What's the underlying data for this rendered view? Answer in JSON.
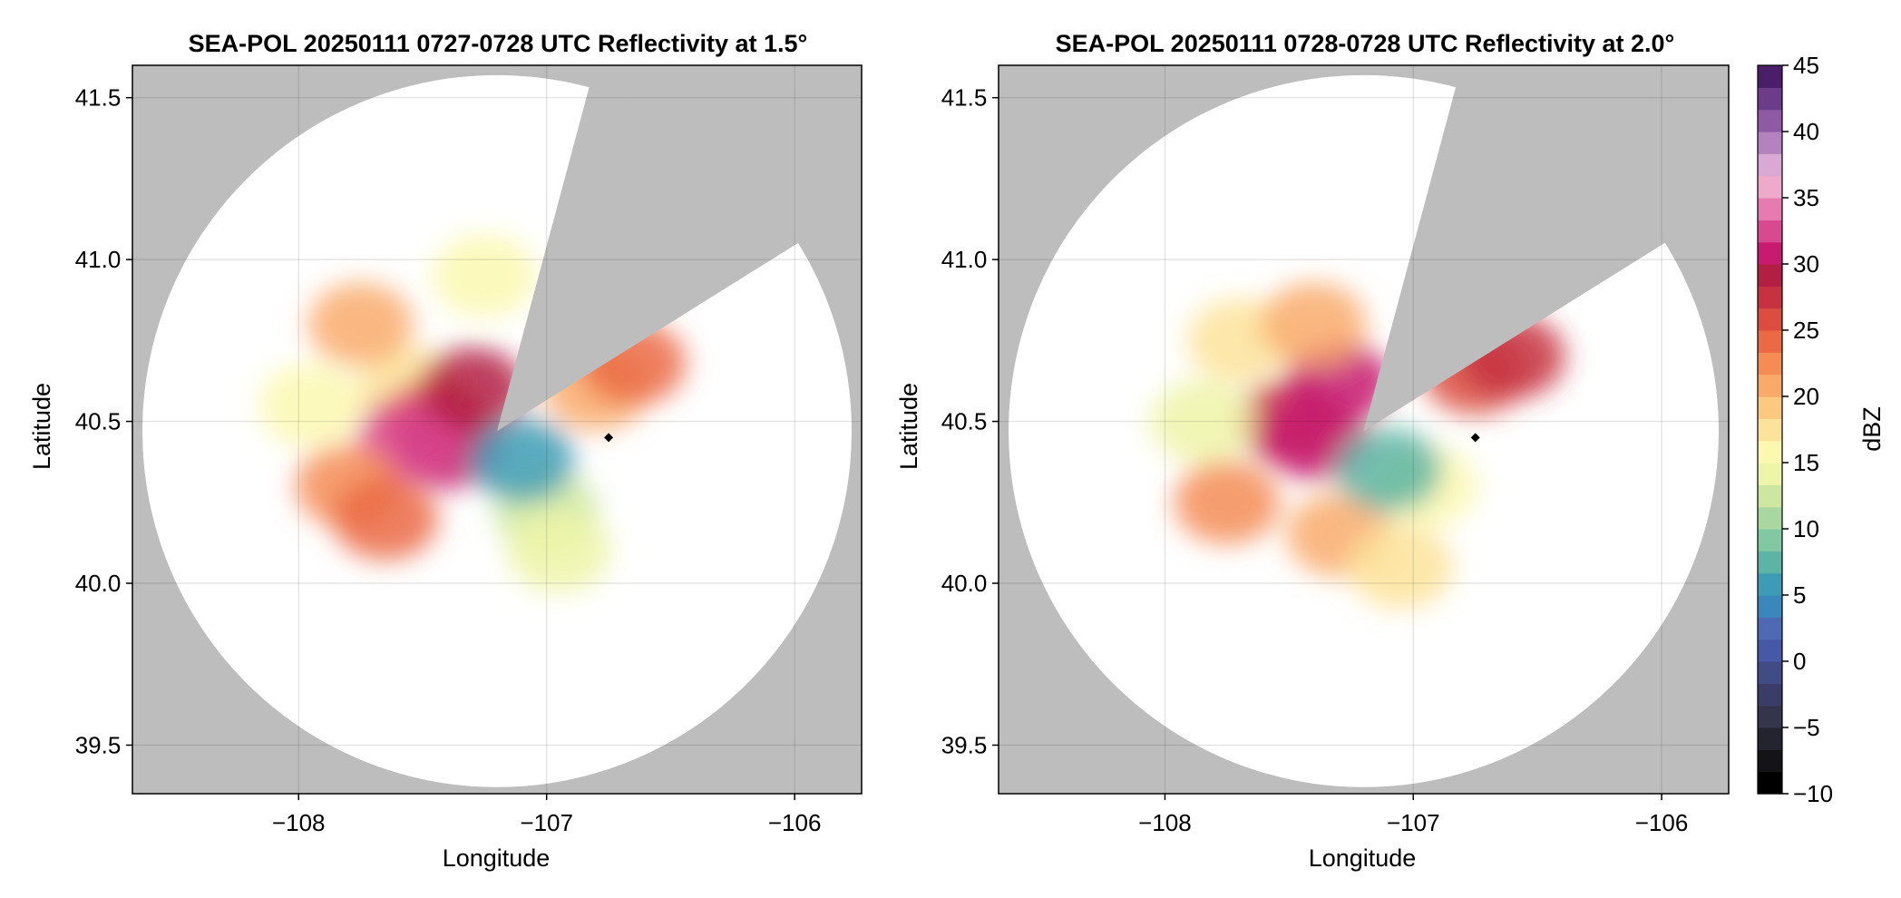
{
  "chart_data": [
    {
      "type": "heatmap",
      "title": "SEA-POL 20250111 0727-0728 UTC Reflectivity at 1.5°",
      "xlabel": "Longitude",
      "ylabel": "Latitude",
      "xlim": [
        -108.67,
        -105.73
      ],
      "ylim": [
        39.35,
        41.6
      ],
      "x_ticks": [
        -108,
        -107,
        -106
      ],
      "x_tick_labels": [
        "−108",
        "−107",
        "−106"
      ],
      "y_ticks": [
        39.5,
        40.0,
        40.5,
        41.0,
        41.5
      ],
      "y_tick_labels": [
        "39.5",
        "40.0",
        "40.5",
        "41.0",
        "41.5"
      ],
      "grid": true,
      "background_color": "#bdbdbd",
      "radar": {
        "lon": -107.2,
        "lat": 40.47,
        "range_deg_lat": 1.1,
        "range_deg_lon": 1.43
      },
      "blocked_sector_deg": [
        15,
        58
      ],
      "marker": {
        "lon": -106.75,
        "lat": 40.45
      },
      "echo_regions": [
        {
          "lon": -107.55,
          "lat": 40.6,
          "dbz": 18
        },
        {
          "lon": -107.75,
          "lat": 40.8,
          "dbz": 20
        },
        {
          "lon": -107.45,
          "lat": 40.5,
          "dbz": 26
        },
        {
          "lon": -107.4,
          "lat": 40.42,
          "dbz": 30
        },
        {
          "lon": -107.55,
          "lat": 40.45,
          "dbz": 32
        },
        {
          "lon": -107.3,
          "lat": 40.6,
          "dbz": 29
        },
        {
          "lon": -107.95,
          "lat": 40.55,
          "dbz": 16
        },
        {
          "lon": -107.8,
          "lat": 40.3,
          "dbz": 22
        },
        {
          "lon": -107.65,
          "lat": 40.2,
          "dbz": 24
        },
        {
          "lon": -107.0,
          "lat": 40.22,
          "dbz": 12
        },
        {
          "lon": -106.95,
          "lat": 40.1,
          "dbz": 14
        },
        {
          "lon": -106.8,
          "lat": 40.6,
          "dbz": 20
        },
        {
          "lon": -106.65,
          "lat": 40.68,
          "dbz": 24
        },
        {
          "lon": -107.25,
          "lat": 40.95,
          "dbz": 16
        },
        {
          "lon": -107.1,
          "lat": 40.38,
          "dbz": 6
        }
      ]
    },
    {
      "type": "heatmap",
      "title": "SEA-POL 20250111 0728-0728 UTC Reflectivity at 2.0°",
      "xlabel": "Longitude",
      "ylabel": "Latitude",
      "xlim": [
        -108.67,
        -105.73
      ],
      "ylim": [
        39.35,
        41.6
      ],
      "x_ticks": [
        -108,
        -107,
        -106
      ],
      "x_tick_labels": [
        "−108",
        "−107",
        "−106"
      ],
      "y_ticks": [
        39.5,
        40.0,
        40.5,
        41.0,
        41.5
      ],
      "y_tick_labels": [
        "39.5",
        "40.0",
        "40.5",
        "41.0",
        "41.5"
      ],
      "grid": true,
      "background_color": "#bdbdbd",
      "radar": {
        "lon": -107.2,
        "lat": 40.47,
        "range_deg_lat": 1.1,
        "range_deg_lon": 1.43
      },
      "blocked_sector_deg": [
        15,
        58
      ],
      "marker": {
        "lon": -106.75,
        "lat": 40.45
      },
      "echo_regions": [
        {
          "lon": -107.5,
          "lat": 40.5,
          "dbz": 27
        },
        {
          "lon": -107.4,
          "lat": 40.45,
          "dbz": 31
        },
        {
          "lon": -107.3,
          "lat": 40.62,
          "dbz": 30
        },
        {
          "lon": -107.7,
          "lat": 40.75,
          "dbz": 18
        },
        {
          "lon": -107.85,
          "lat": 40.5,
          "dbz": 14
        },
        {
          "lon": -107.75,
          "lat": 40.25,
          "dbz": 23
        },
        {
          "lon": -107.3,
          "lat": 40.15,
          "dbz": 21
        },
        {
          "lon": -107.05,
          "lat": 40.05,
          "dbz": 18
        },
        {
          "lon": -106.95,
          "lat": 40.3,
          "dbz": 15
        },
        {
          "lon": -106.75,
          "lat": 40.65,
          "dbz": 25
        },
        {
          "lon": -106.6,
          "lat": 40.7,
          "dbz": 27
        },
        {
          "lon": -107.4,
          "lat": 40.8,
          "dbz": 20
        },
        {
          "lon": -107.1,
          "lat": 40.35,
          "dbz": 8
        }
      ]
    }
  ],
  "colorbar": {
    "label": "dBZ",
    "min": -10,
    "max": 45,
    "ticks": [
      -10,
      -5,
      0,
      5,
      10,
      15,
      20,
      25,
      30,
      35,
      40,
      45
    ],
    "tick_labels": [
      "−10",
      "−5",
      "0",
      "5",
      "10",
      "15",
      "20",
      "25",
      "30",
      "35",
      "40",
      "45"
    ],
    "colors": [
      "#000000",
      "#141418",
      "#24242e",
      "#34344a",
      "#3b3c67",
      "#414b86",
      "#4759a6",
      "#4f6ab5",
      "#3a87bc",
      "#3d9cb4",
      "#5cb4a5",
      "#82c8a2",
      "#a8d8a0",
      "#cde7a0",
      "#eef5a8",
      "#fbf8b0",
      "#fde39a",
      "#fcc981",
      "#f9aa6b",
      "#f58c55",
      "#eb6a44",
      "#db4e3f",
      "#c6323f",
      "#b31f44",
      "#c71b6f",
      "#d9498f",
      "#e67bb0",
      "#eea9cb",
      "#d9a9d3",
      "#b482bf",
      "#8e5aa5",
      "#6c3c8b",
      "#4b1e6a"
    ]
  }
}
